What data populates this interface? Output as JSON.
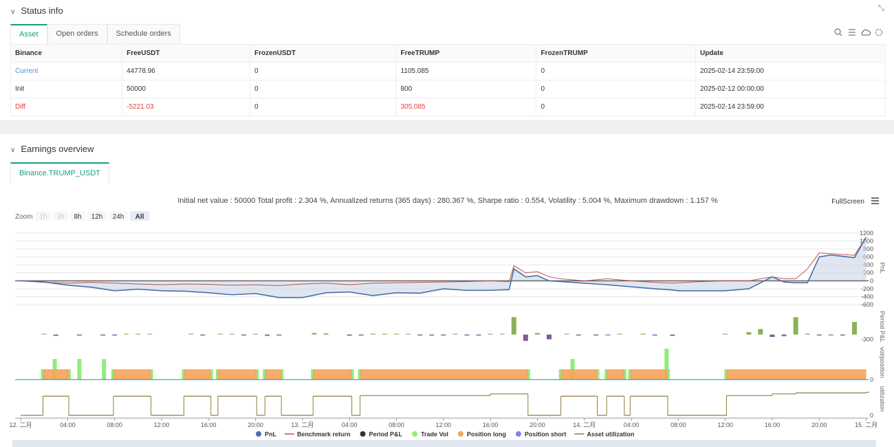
{
  "status": {
    "title": "Status info",
    "tabs": [
      "Asset",
      "Open orders",
      "Schedule orders"
    ],
    "table": {
      "headers": [
        "Binance",
        "FreeUSDT",
        "FrozenUSDT",
        "FreeTRUMP",
        "FrozenTRUMP",
        "Update"
      ],
      "rows": [
        [
          "Current",
          "44778.96",
          "0",
          "1105.085",
          "0",
          "2025-02-14 23:59:00"
        ],
        [
          "Init",
          "50000",
          "0",
          "800",
          "0",
          "2025-02-12 00:00:00"
        ],
        [
          "Diff",
          "-5221.03",
          "0",
          "305.085",
          "0",
          "2025-02-14 23:59:00"
        ]
      ]
    }
  },
  "earnings": {
    "title": "Earnings overview",
    "tab": "Binance.TRUMP_USDT",
    "summary": "Initial net value : 50000 Total profit : 2.304 %, Annualized returns (365 days) : 280.367 %, Sharpe ratio : 0.554, Volatility : 5.004 %, Maximum drawdown : 1.157 %",
    "fullscreen": "FullScreen",
    "zoom_label": "Zoom",
    "zoom_buttons": [
      "1h",
      "3h",
      "8h",
      "12h",
      "24h",
      "All"
    ]
  },
  "chart_data": {
    "type": "stacked-panels",
    "xlim": [
      -0.47,
      72.2
    ],
    "xticks": [
      {
        "value": 0,
        "label": "12. 二月"
      },
      {
        "value": 4,
        "label": "04:00"
      },
      {
        "value": 8,
        "label": "08:00"
      },
      {
        "value": 12,
        "label": "12:00"
      },
      {
        "value": 16,
        "label": "16:00"
      },
      {
        "value": 20,
        "label": "20:00"
      },
      {
        "value": 24,
        "label": "13. 二月"
      },
      {
        "value": 28,
        "label": "04:00"
      },
      {
        "value": 32,
        "label": "08:00"
      },
      {
        "value": 36,
        "label": "12:00"
      },
      {
        "value": 40,
        "label": "16:00"
      },
      {
        "value": 44,
        "label": "20:00"
      },
      {
        "value": 48,
        "label": "14. 二月"
      },
      {
        "value": 52,
        "label": "04:00"
      },
      {
        "value": 56,
        "label": "08:00"
      },
      {
        "value": 60,
        "label": "12:00"
      },
      {
        "value": 64,
        "label": "16:00"
      },
      {
        "value": 68,
        "label": "20:00"
      },
      {
        "value": 72,
        "label": "15. 二月"
      }
    ],
    "pnl": {
      "axis_label": "PnL",
      "ylim": [
        -650,
        1300
      ],
      "yticks": [
        1200,
        1000,
        800,
        600,
        400,
        200,
        0,
        -200,
        -400,
        -600
      ],
      "x": [
        0,
        2,
        4,
        6,
        8,
        10,
        12,
        14,
        16,
        18,
        20,
        22,
        24,
        26,
        28,
        30,
        32,
        34,
        36,
        38,
        40,
        41.6,
        42,
        43,
        44,
        45,
        46,
        48,
        50,
        52,
        54,
        55.5,
        56,
        58,
        60,
        62,
        64,
        65,
        66,
        67,
        68,
        69,
        71,
        72
      ],
      "series": [
        {
          "name": "PnL",
          "color": "#4a6fa5",
          "values": [
            0,
            -30,
            -110,
            -160,
            -250,
            -210,
            -250,
            -260,
            -300,
            -350,
            -320,
            -420,
            -420,
            -300,
            -280,
            -370,
            -300,
            -310,
            -200,
            -240,
            -240,
            -220,
            300,
            100,
            130,
            0,
            -20,
            -60,
            -100,
            -150,
            -200,
            -230,
            -250,
            -250,
            -250,
            -200,
            100,
            -30,
            -50,
            -50,
            600,
            650,
            580,
            1100
          ]
        },
        {
          "name": "Benchmark return",
          "color": "#c0504d",
          "values": [
            0,
            -40,
            -60,
            -40,
            -60,
            -80,
            -100,
            -80,
            -90,
            -110,
            -100,
            -120,
            -80,
            -60,
            -100,
            -60,
            -50,
            -40,
            -30,
            -20,
            0,
            -20,
            380,
            200,
            230,
            100,
            50,
            0,
            50,
            0,
            -40,
            -60,
            -50,
            -20,
            0,
            0,
            100,
            50,
            50,
            300,
            700,
            680,
            640,
            1100
          ]
        }
      ]
    },
    "period": {
      "axis_label": "Period P&L",
      "name": "Period P&L",
      "color": "#333333",
      "up_color": "#8bb158",
      "down_color": "#7e5a9b",
      "ylim": [
        -500,
        1500
      ],
      "yticks": [
        -300
      ],
      "x": [
        2,
        3,
        5,
        7,
        8,
        9,
        10,
        11,
        14.5,
        15.5,
        17,
        18,
        19,
        20,
        21,
        22,
        25,
        26,
        28,
        29,
        30,
        31,
        32,
        33,
        34,
        35,
        36,
        37,
        38,
        39,
        40,
        41,
        42,
        43,
        44,
        45,
        46.5,
        47.5,
        49,
        50,
        51,
        53,
        54,
        55.5,
        60,
        62,
        63,
        64,
        65,
        66,
        67,
        68,
        69,
        70,
        71
      ],
      "values": [
        50,
        -80,
        -60,
        -60,
        -60,
        50,
        50,
        50,
        50,
        -60,
        50,
        50,
        -60,
        50,
        -80,
        -60,
        100,
        80,
        -70,
        -60,
        60,
        50,
        50,
        50,
        -60,
        -60,
        -60,
        50,
        -60,
        -60,
        50,
        50,
        1100,
        -400,
        100,
        -300,
        50,
        -60,
        -60,
        -50,
        50,
        60,
        -60,
        -80,
        50,
        150,
        350,
        -150,
        -100,
        1100,
        60,
        -60,
        -50,
        -60,
        800
      ]
    },
    "volume": {
      "axis_label": "vol/position",
      "ylim": [
        0,
        3000
      ],
      "yticks": [
        0
      ],
      "trade_vol": {
        "name": "Trade Vol",
        "color": "#90ed7d",
        "x": [
          1.9,
          2.9,
          4.1,
          5,
          7.1,
          7.9,
          11.1,
          13.9,
          16.2,
          16.8,
          20.1,
          20.8,
          22.2,
          24.9,
          28.2,
          28.9,
          43.2,
          46,
          47,
          49.1,
          49.9,
          51.4,
          51.9,
          55,
          55.1,
          60.1
        ],
        "values": [
          900,
          1800,
          900,
          1800,
          1800,
          900,
          900,
          900,
          900,
          900,
          900,
          900,
          900,
          900,
          900,
          900,
          900,
          900,
          1800,
          900,
          900,
          900,
          900,
          2700,
          900,
          900
        ]
      },
      "position_long": {
        "name": "Position long",
        "color": "#f7a35c",
        "start": [
          1.9,
          7.9,
          13.9,
          16.8,
          20.8,
          24.9,
          28.9,
          46,
          49.9,
          51.9,
          60.1
        ],
        "end": [
          4.1,
          11.1,
          16.2,
          20.1,
          22.2,
          28.2,
          43.2,
          49.1,
          51.4,
          55.1,
          72
        ],
        "values": [
          900,
          900,
          900,
          900,
          900,
          900,
          900,
          900,
          900,
          900,
          900
        ]
      },
      "position_short": {
        "name": "Position short",
        "color": "#8085e9"
      }
    },
    "utilization": {
      "axis_label": "utilization",
      "name": "Asset utilization",
      "color": "#8b7d3a",
      "ylim": [
        0,
        1
      ],
      "yticks": [
        0
      ],
      "x": [
        0,
        1.9,
        4.1,
        7.9,
        11.1,
        13.9,
        16.2,
        16.8,
        20.1,
        20.8,
        22.2,
        24.9,
        28.2,
        28.9,
        40,
        43.2,
        46,
        49.1,
        49.9,
        51.4,
        51.9,
        55.1,
        60.1,
        64,
        66,
        72
      ],
      "values": [
        0,
        0.58,
        0,
        0.58,
        0,
        0.58,
        0,
        0.58,
        0,
        0.58,
        0,
        0.58,
        0,
        0.6,
        0.65,
        0,
        0.58,
        0,
        0.58,
        0,
        0.58,
        0,
        0.6,
        0.65,
        0.68,
        0.7
      ]
    }
  }
}
